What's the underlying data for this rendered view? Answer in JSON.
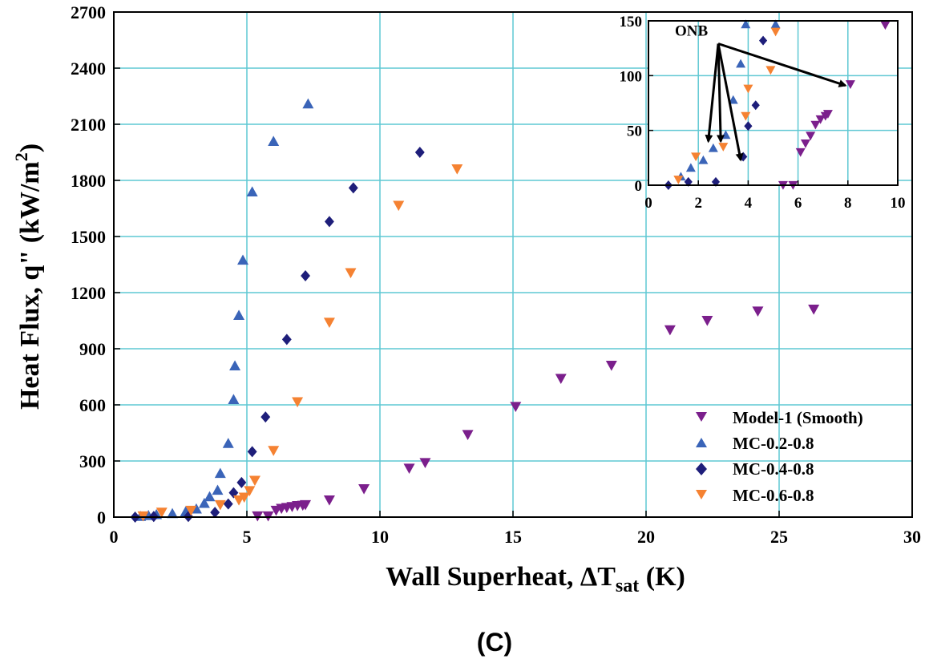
{
  "panel_label": "(C)",
  "colors": {
    "grid": "#5fc8d3",
    "model1": "#7b1f8c",
    "mc02": "#3a64b8",
    "mc04": "#1e1e7a",
    "mc06": "#f58232"
  },
  "chart_data": [
    {
      "id": "main",
      "type": "scatter",
      "title": "",
      "xlabel": "Wall Superheat, ΔT",
      "xlabel_sub": "sat",
      "xlabel_tail": " (K)",
      "ylabel": "Heat Flux, q\" (kW/m",
      "ylabel_sup": "2",
      "ylabel_tail": ")",
      "xlim": [
        0,
        30
      ],
      "ylim": [
        0,
        2700
      ],
      "xticks": [
        0,
        5,
        10,
        15,
        20,
        25,
        30
      ],
      "yticks": [
        0,
        300,
        600,
        900,
        1200,
        1500,
        1800,
        2100,
        2400,
        2700
      ],
      "grid": true,
      "legend_position": "bottom-right",
      "series": [
        {
          "name": "Model-1 (Smooth)",
          "color_key": "model1",
          "marker": "triangle-down",
          "x": [
            5.4,
            5.8,
            6.1,
            6.3,
            6.5,
            6.7,
            6.9,
            7.1,
            7.2,
            8.1,
            9.4,
            11.1,
            11.7,
            13.3,
            15.1,
            16.8,
            18.7,
            20.9,
            22.3,
            24.2,
            26.3
          ],
          "y": [
            5,
            5,
            35,
            45,
            50,
            55,
            60,
            62,
            65,
            90,
            150,
            260,
            290,
            440,
            590,
            740,
            810,
            1000,
            1050,
            1100,
            1110
          ]
        },
        {
          "name": "MC-0.2-0.8",
          "color_key": "mc02",
          "marker": "triangle-up",
          "x": [
            1.0,
            1.3,
            1.6,
            2.2,
            2.7,
            3.1,
            3.4,
            3.6,
            3.9,
            4.0,
            4.3,
            4.5,
            4.55,
            4.7,
            4.85,
            5.2,
            6.0,
            7.3
          ],
          "y": [
            5,
            10,
            15,
            20,
            30,
            45,
            75,
            110,
            145,
            235,
            395,
            630,
            810,
            1080,
            1375,
            1740,
            2010,
            2210
          ]
        },
        {
          "name": "MC-0.4-0.8",
          "color_key": "mc04",
          "marker": "diamond",
          "x": [
            0.8,
            1.5,
            2.8,
            3.8,
            4.3,
            4.5,
            4.8,
            5.2,
            5.7,
            6.5,
            7.2,
            8.1,
            9.0,
            11.5
          ],
          "y": [
            0,
            3,
            3,
            25,
            70,
            130,
            185,
            350,
            535,
            950,
            1290,
            1580,
            1760,
            1950
          ]
        },
        {
          "name": "MC-0.6-0.8",
          "color_key": "mc06",
          "marker": "triangle-down",
          "x": [
            1.1,
            1.8,
            2.9,
            4.0,
            4.7,
            4.9,
            5.1,
            5.3,
            6.0,
            6.9,
            8.1,
            8.9,
            10.7,
            12.9
          ],
          "y": [
            5,
            25,
            35,
            65,
            90,
            105,
            140,
            195,
            355,
            615,
            1040,
            1305,
            1665,
            1860
          ]
        }
      ]
    },
    {
      "id": "inset",
      "type": "scatter",
      "title": "",
      "xlim": [
        0,
        10
      ],
      "ylim": [
        0,
        150
      ],
      "xticks": [
        0,
        2,
        4,
        6,
        8,
        10
      ],
      "yticks": [
        0,
        50,
        100,
        150
      ],
      "grid": true,
      "annotations": [
        {
          "text": "ONB",
          "x": 2.8,
          "y": 135,
          "arrows_to": [
            [
              2.4,
              40
            ],
            [
              2.9,
              40
            ],
            [
              3.7,
              23
            ],
            [
              7.9,
              91
            ]
          ]
        }
      ],
      "series": [
        {
          "name": "Model-1 (Smooth)",
          "color_key": "model1",
          "marker": "triangle-down",
          "x": [
            5.4,
            5.8,
            6.1,
            6.3,
            6.5,
            6.7,
            6.9,
            7.1,
            7.2,
            8.1,
            9.5
          ],
          "y": [
            0,
            0,
            30,
            38,
            45,
            55,
            60,
            63,
            65,
            92,
            146
          ]
        },
        {
          "name": "MC-0.2-0.8",
          "color_key": "mc02",
          "marker": "triangle-up",
          "x": [
            1.3,
            1.7,
            2.2,
            2.6,
            3.1,
            3.4,
            3.7,
            3.9,
            5.1
          ],
          "y": [
            8,
            16,
            23,
            34,
            46,
            78,
            111,
            147,
            147
          ]
        },
        {
          "name": "MC-0.4-0.8",
          "color_key": "mc04",
          "marker": "diamond",
          "x": [
            0.8,
            1.6,
            2.7,
            3.8,
            4.0,
            4.3,
            4.6
          ],
          "y": [
            0,
            3,
            3,
            26,
            54,
            73,
            132
          ]
        },
        {
          "name": "MC-0.6-0.8",
          "color_key": "mc06",
          "marker": "triangle-down",
          "x": [
            1.2,
            1.9,
            3.0,
            3.9,
            4.9,
            5.1,
            4.0
          ],
          "y": [
            5,
            26,
            35,
            63,
            105,
            140,
            88
          ]
        }
      ]
    }
  ]
}
